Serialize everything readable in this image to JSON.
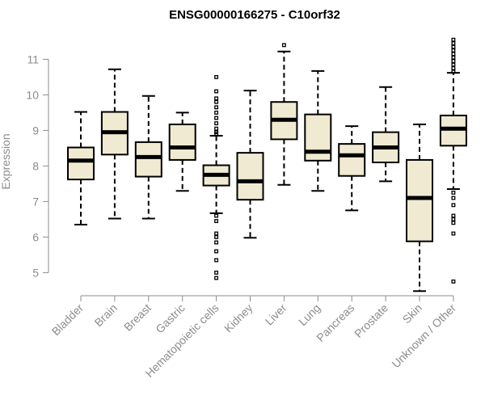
{
  "chart_data": {
    "type": "box",
    "title": "ENSG00000166275 - C10orf32",
    "xlabel": "",
    "ylabel": "Expression",
    "ylim": [
      4.6,
      11.6
    ],
    "yticks": [
      5,
      6,
      7,
      8,
      9,
      10,
      11
    ],
    "box_fill": "#f0ead2",
    "categories": [
      "Bladder",
      "Brain",
      "Breast",
      "Gastric",
      "Hematopoietic cells",
      "Kidney",
      "Liver",
      "Lung",
      "Pancreas",
      "Prostate",
      "Skin",
      "Unknown / Other"
    ],
    "boxes": [
      {
        "min": 6.35,
        "q1": 7.62,
        "median": 8.15,
        "q3": 8.52,
        "max": 9.52,
        "outliers": []
      },
      {
        "min": 6.52,
        "q1": 8.32,
        "median": 8.95,
        "q3": 9.52,
        "max": 10.72,
        "outliers": []
      },
      {
        "min": 6.52,
        "q1": 7.7,
        "median": 8.25,
        "q3": 8.67,
        "max": 9.97,
        "outliers": []
      },
      {
        "min": 7.3,
        "q1": 8.17,
        "median": 8.52,
        "q3": 9.17,
        "max": 9.5,
        "outliers": []
      },
      {
        "min": 6.67,
        "q1": 7.45,
        "median": 7.75,
        "q3": 8.02,
        "max": 8.85,
        "outliers": [
          10.5,
          10.1,
          9.9,
          9.8,
          9.65,
          9.5,
          9.35,
          9.2,
          9.05,
          8.95,
          8.9,
          6.6,
          6.45,
          6.1,
          6.0,
          5.85,
          5.6,
          5.35,
          5.0,
          4.85
        ]
      },
      {
        "min": 5.98,
        "q1": 7.05,
        "median": 7.57,
        "q3": 8.37,
        "max": 10.12,
        "outliers": []
      },
      {
        "min": 7.47,
        "q1": 8.75,
        "median": 9.3,
        "q3": 9.8,
        "max": 11.22,
        "outliers": [
          11.4
        ]
      },
      {
        "min": 7.3,
        "q1": 8.15,
        "median": 8.4,
        "q3": 9.45,
        "max": 10.67,
        "outliers": []
      },
      {
        "min": 6.75,
        "q1": 7.72,
        "median": 8.3,
        "q3": 8.62,
        "max": 9.12,
        "outliers": []
      },
      {
        "min": 7.57,
        "q1": 8.1,
        "median": 8.52,
        "q3": 8.95,
        "max": 10.22,
        "outliers": []
      },
      {
        "min": 4.48,
        "q1": 5.88,
        "median": 7.1,
        "q3": 8.17,
        "max": 9.17,
        "outliers": []
      },
      {
        "min": 7.35,
        "q1": 8.57,
        "median": 9.05,
        "q3": 9.42,
        "max": 10.62,
        "outliers": [
          11.55,
          11.45,
          11.35,
          11.25,
          11.15,
          11.05,
          10.95,
          10.85,
          10.75,
          10.65,
          7.25,
          7.1,
          6.9,
          6.6,
          6.5,
          6.4,
          6.1,
          4.75
        ]
      }
    ]
  }
}
